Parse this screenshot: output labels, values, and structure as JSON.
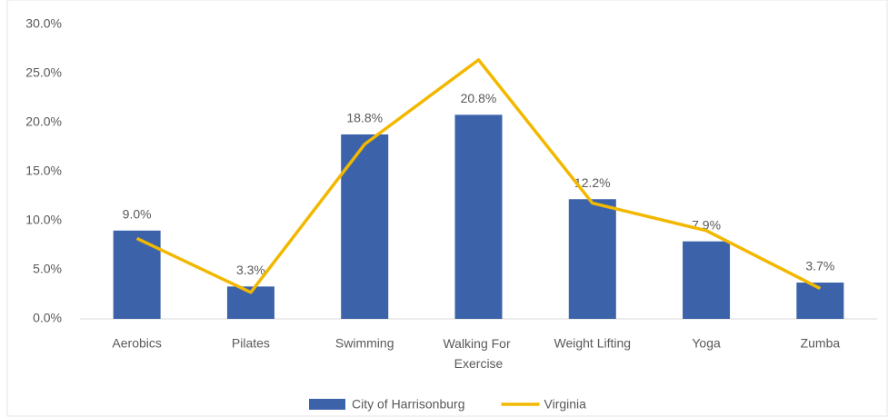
{
  "chart_data": {
    "type": "bar",
    "categories": [
      "Aerobics",
      "Pilates",
      "Swimming",
      "Walking For Exercise",
      "Weight Lifting",
      "Yoga",
      "Zumba"
    ],
    "series": [
      {
        "name": "City of Harrisonburg",
        "type": "bar",
        "color": "#3c62aa",
        "values": [
          9.0,
          3.3,
          18.8,
          20.8,
          12.2,
          7.9,
          3.7
        ],
        "value_labels": [
          "9.0%",
          "3.3%",
          "18.8%",
          "20.8%",
          "12.2%",
          "7.9%",
          "3.7%"
        ]
      },
      {
        "name": "Virginia",
        "type": "line",
        "color": "#f2b800",
        "values": [
          8.2,
          2.7,
          17.8,
          26.4,
          11.8,
          9.0,
          3.1
        ]
      }
    ],
    "ylim": [
      0,
      30
    ],
    "yticks": [
      {
        "value": 0,
        "label": "0.0%"
      },
      {
        "value": 5,
        "label": "5.0%"
      },
      {
        "value": 10,
        "label": "10.0%"
      },
      {
        "value": 15,
        "label": "15.0%"
      },
      {
        "value": 20,
        "label": "20.0%"
      },
      {
        "value": 25,
        "label": "25.0%"
      },
      {
        "value": 30,
        "label": "30.0%"
      }
    ],
    "grid": false,
    "legend": "bottom"
  }
}
